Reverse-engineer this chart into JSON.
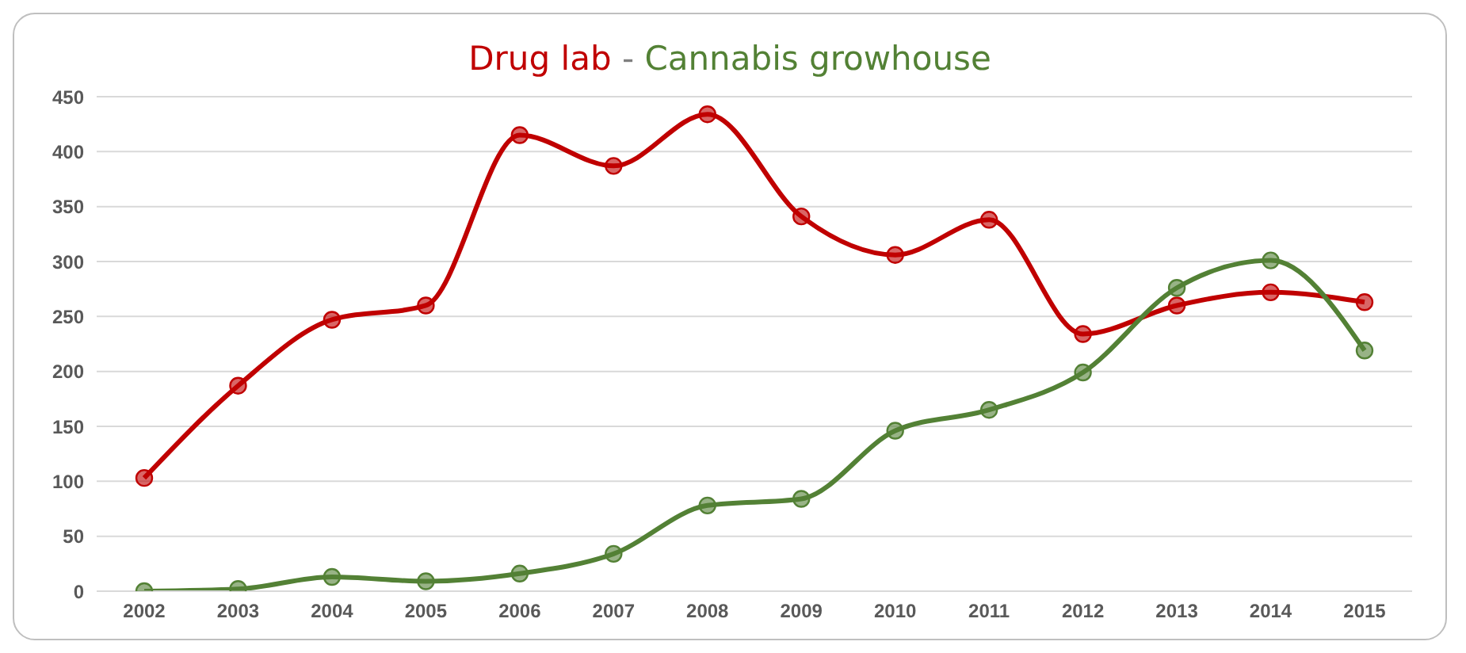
{
  "chart_data": {
    "type": "line",
    "title": "Drug lab - Cannabis growhouse",
    "categories": [
      "2002",
      "2003",
      "2004",
      "2005",
      "2006",
      "2007",
      "2008",
      "2009",
      "2010",
      "2011",
      "2012",
      "2013",
      "2014",
      "2015"
    ],
    "series": [
      {
        "color": "#c00000",
        "values": [
          103,
          187,
          247,
          260,
          415,
          387,
          434,
          341,
          306,
          338,
          234,
          260,
          272,
          263
        ]
      },
      {
        "color": "#538135",
        "values": [
          0,
          2,
          13,
          9,
          16,
          34,
          78,
          84,
          146,
          165,
          199,
          276,
          301,
          219
        ]
      }
    ],
    "ylim": [
      0,
      450
    ],
    "yticks": [
      0,
      50,
      100,
      150,
      200,
      250,
      300,
      350,
      400,
      450
    ],
    "grid": "y",
    "marker": "circle",
    "line_style": "solid"
  }
}
